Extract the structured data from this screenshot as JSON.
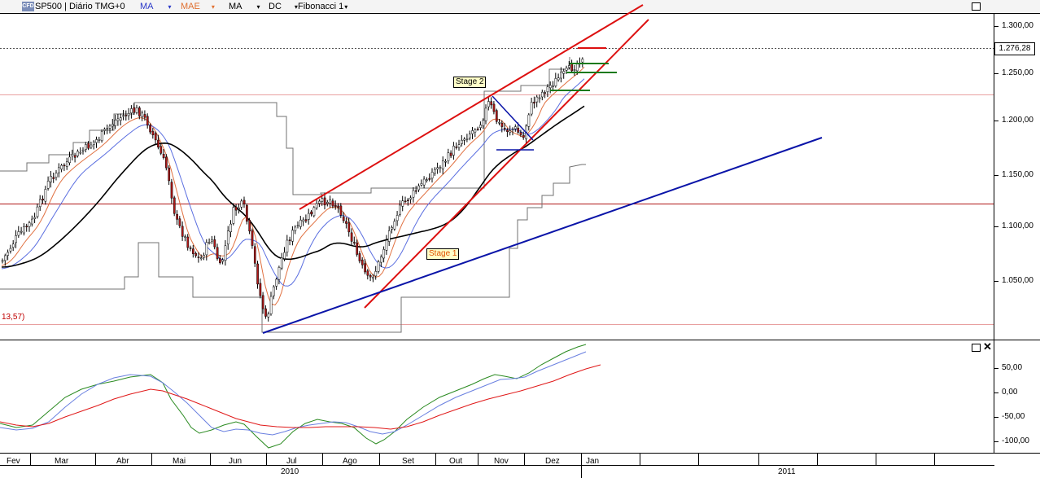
{
  "toolbar": {
    "logo_text": "CFD",
    "symbol": "SP500 | Diário TMG+0",
    "indicators": [
      {
        "label": "MA",
        "color": "#2a38c8"
      },
      {
        "label": "MAE",
        "color": "#e07030"
      },
      {
        "label": "MA",
        "color": "#000000"
      },
      {
        "label": "DC",
        "color": "#000000"
      },
      {
        "label": "Fibonacci 1",
        "color": "#000000"
      }
    ]
  },
  "price_axis": {
    "labels": [
      "1.300,00",
      "1.250,00",
      "1.200,00",
      "1.150,00",
      "1.100,00",
      "1.050,00"
    ],
    "current_price": "1.276,28"
  },
  "oscillator_axis": {
    "labels": [
      "50,00",
      "0,00",
      "-50,00",
      "-100,00"
    ]
  },
  "annotations": {
    "stage1": "Stage 1",
    "stage2": "Stage 2",
    "left_value": "13,57)"
  },
  "time_axis": {
    "months": [
      "Fev",
      "Mar",
      "Abr",
      "Mai",
      "Jun",
      "Jul",
      "Ago",
      "Set",
      "Out",
      "Nov",
      "Dez",
      "Jan"
    ],
    "years": [
      "2010",
      "2011"
    ]
  },
  "colors": {
    "candle_up": "#ffffff",
    "candle_down": "#b01818",
    "trendline_red": "#dd1010",
    "trendline_blue": "#0a14a8",
    "ma_blue": "#5a6ee0",
    "ma_orange": "#e07040",
    "ma_black": "#000000",
    "osc_green": "#2a8a20",
    "osc_blue": "#6a80e0",
    "osc_red": "#e01818",
    "stage_fill": "#ffffc8"
  }
}
